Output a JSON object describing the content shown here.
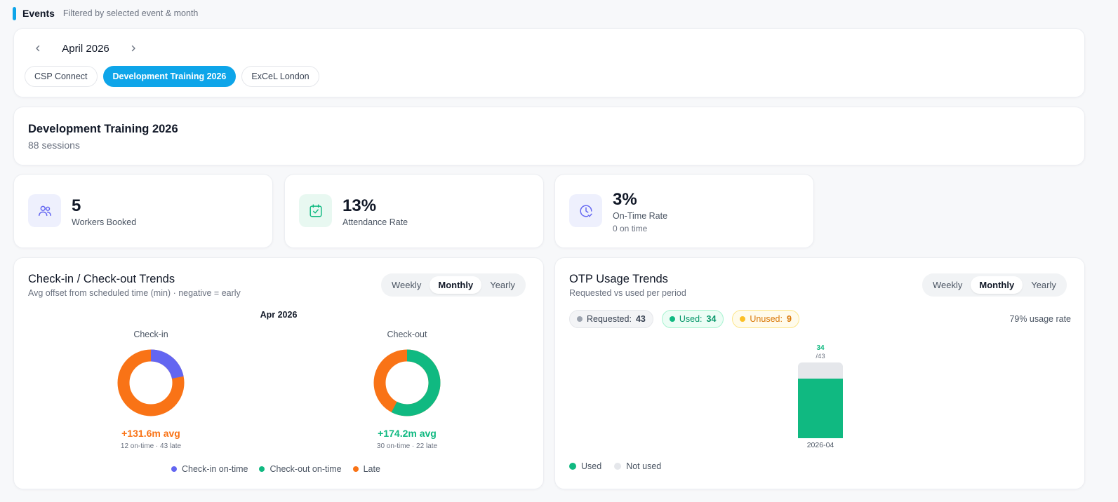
{
  "header": {
    "title": "Events",
    "subtitle": "Filtered by selected event & month"
  },
  "month_nav": {
    "prev_icon": "chevron-left-icon",
    "next_icon": "chevron-right-icon",
    "label": "April 2026"
  },
  "event_chips": [
    {
      "label": "CSP Connect",
      "active": false
    },
    {
      "label": "Development Training 2026",
      "active": true
    },
    {
      "label": "ExCeL London",
      "active": false
    }
  ],
  "event": {
    "title": "Development Training 2026",
    "sessions": "88 sessions"
  },
  "stats": [
    {
      "icon": "users-icon",
      "value": "5",
      "label": "Workers Booked",
      "note": ""
    },
    {
      "icon": "calendar-check-icon",
      "value": "13%",
      "label": "Attendance Rate",
      "note": ""
    },
    {
      "icon": "clock-check-icon",
      "value": "3%",
      "label": "On-Time Rate",
      "note": "0 on time"
    }
  ],
  "checkin_trends": {
    "title": "Check-in / Check-out Trends",
    "subtitle": "Avg offset from scheduled time (min) · negative = early",
    "tabs": [
      "Weekly",
      "Monthly",
      "Yearly"
    ],
    "active_tab": "Monthly",
    "period": "Apr 2026",
    "checkin": {
      "label": "Check-in",
      "avg": "+131.6m avg",
      "detail": "12 on-time · 43 late",
      "on_time": 12,
      "late": 43
    },
    "checkout": {
      "label": "Check-out",
      "avg": "+174.2m avg",
      "detail": "30 on-time · 22 late",
      "on_time": 30,
      "late": 22
    },
    "legend": [
      "Check-in on-time",
      "Check-out on-time",
      "Late"
    ]
  },
  "otp_trends": {
    "title": "OTP Usage Trends",
    "subtitle": "Requested vs used per period",
    "tabs": [
      "Weekly",
      "Monthly",
      "Yearly"
    ],
    "active_tab": "Monthly",
    "requested_label": "Requested:",
    "requested": "43",
    "used_label": "Used:",
    "used": "34",
    "unused_label": "Unused:",
    "unused": "9",
    "usage_rate": "79% usage rate",
    "bar": {
      "period": "2026-04",
      "used_label": "34",
      "total_label": "/43"
    },
    "legend": [
      "Used",
      "Not used"
    ]
  },
  "chart_data": {
    "type": "bar",
    "categories": [
      "2026-04"
    ],
    "series": [
      {
        "name": "Used",
        "values": [
          34
        ]
      },
      {
        "name": "Not used",
        "values": [
          9
        ]
      }
    ],
    "title": "OTP Usage Trends"
  },
  "colors": {
    "accent": "#0ea5e9",
    "checkin_on_time": "#6366f1",
    "checkout_on_time": "#10b981",
    "late": "#f97316",
    "not_used": "#e5e7eb"
  }
}
